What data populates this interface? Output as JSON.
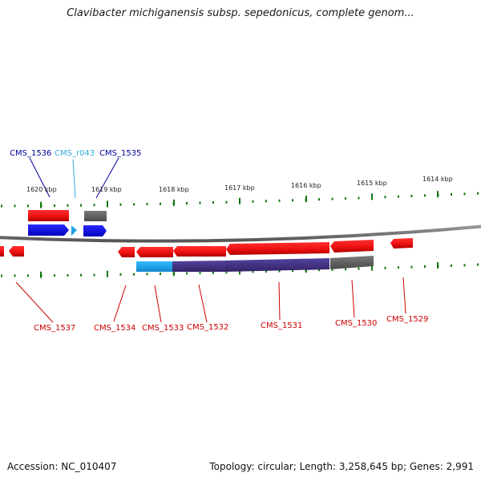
{
  "title": "Clavibacter michiganensis subsp. sepedonicus, complete genom...",
  "footer": {
    "accession": "Accession: NC_010407",
    "summary": "Topology: circular; Length: 3,258,645 bp; Genes: 2,991"
  },
  "colors": {
    "cds": "#ee1111",
    "cds_dark": "#aa0000",
    "gene_upper": "#0000ee",
    "rna": "#22aaee",
    "pseudo": "#666666",
    "feature_purple": "#443388",
    "backbone": "#777777",
    "tick": "#117711",
    "label_red": "#cc0000",
    "label_blue": "#000099",
    "label_cyan": "#33aadd"
  },
  "scale": {
    "unit": "kbp",
    "ticks": [
      {
        "kbp": 1620,
        "label": "1620 kbp"
      },
      {
        "kbp": 1619,
        "label": "1619 kbp"
      },
      {
        "kbp": 1618,
        "label": "1618 kbp"
      },
      {
        "kbp": 1617,
        "label": "1617 kbp"
      },
      {
        "kbp": 1616,
        "label": "1616 kbp"
      },
      {
        "kbp": 1615,
        "label": "1615 kbp"
      },
      {
        "kbp": 1614,
        "label": "1614 kbp"
      }
    ]
  },
  "gene_labels": [
    {
      "id": "CMS_1536",
      "text": "CMS_1536",
      "color": "label_blue"
    },
    {
      "id": "CMS_r043",
      "text": "CMS_r043",
      "color": "label_cyan"
    },
    {
      "id": "CMS_1535",
      "text": "CMS_1535",
      "color": "label_blue"
    },
    {
      "id": "CMS_1537",
      "text": "CMS_1537",
      "color": "label_red"
    },
    {
      "id": "CMS_1534",
      "text": "CMS_1534",
      "color": "label_red"
    },
    {
      "id": "CMS_1533",
      "text": "CMS_1533",
      "color": "label_red"
    },
    {
      "id": "CMS_1532",
      "text": "CMS_1532",
      "color": "label_red"
    },
    {
      "id": "CMS_1531",
      "text": "CMS_1531",
      "color": "label_red"
    },
    {
      "id": "CMS_1530",
      "text": "CMS_1530",
      "color": "label_red"
    },
    {
      "id": "CMS_1529",
      "text": "CMS_1529",
      "color": "label_red"
    }
  ]
}
